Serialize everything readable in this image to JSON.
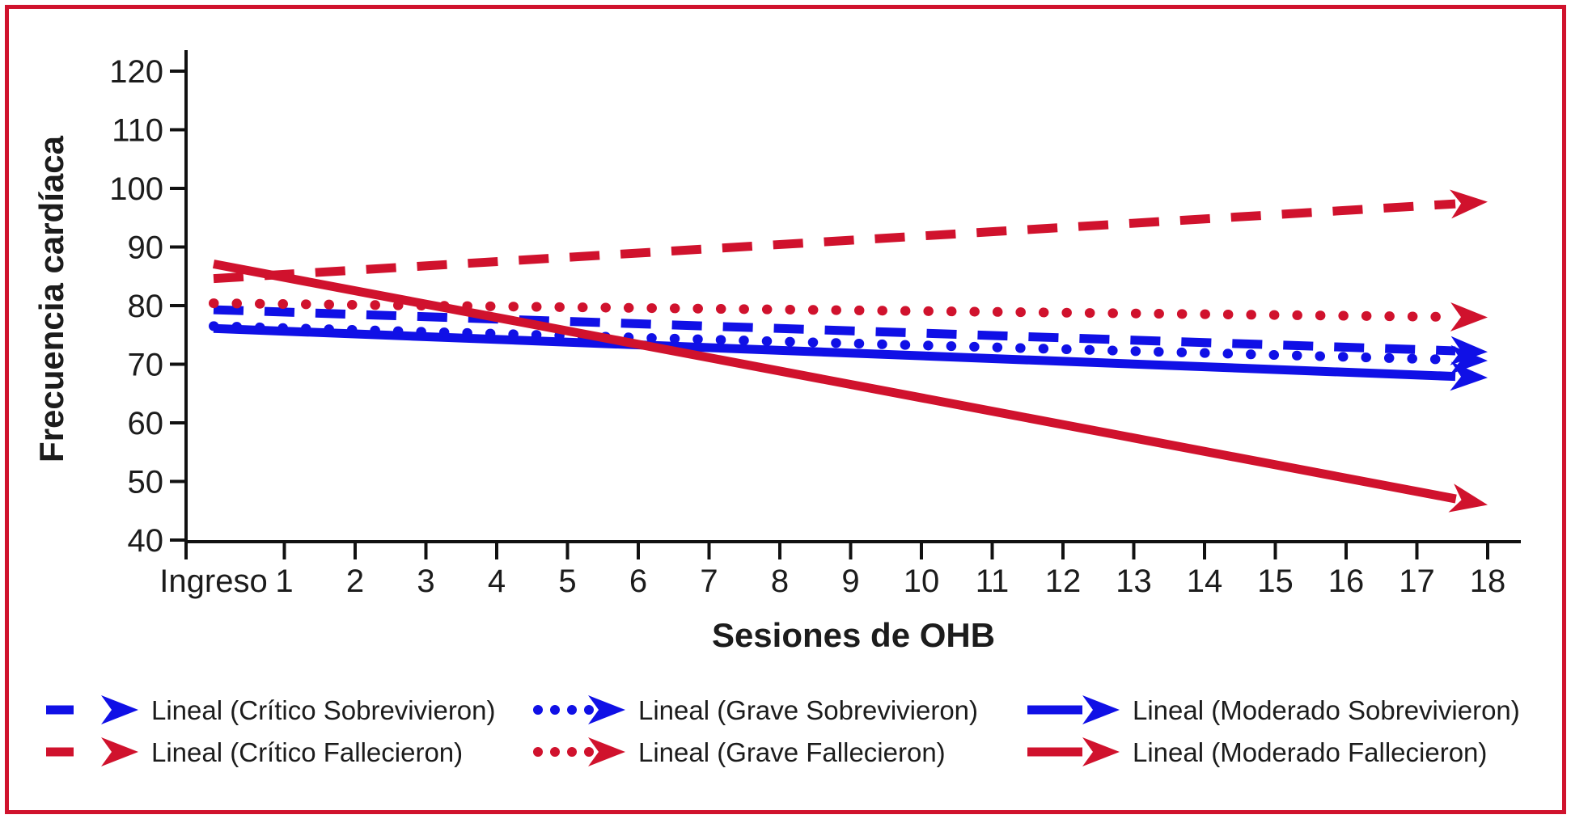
{
  "colors": {
    "blue": "#1010e6",
    "red": "#d0122d",
    "border": "#d0122d",
    "axis": "#111111",
    "text": "#1c1c1c"
  },
  "chart_data": {
    "type": "line",
    "title": "",
    "xlabel": "Sesiones de OHB",
    "ylabel": "Frecuencia cardíaca",
    "x_tick_labels": [
      "Ingreso",
      "1",
      "2",
      "3",
      "4",
      "5",
      "6",
      "7",
      "8",
      "9",
      "10",
      "11",
      "12",
      "13",
      "14",
      "15",
      "16",
      "17",
      "18"
    ],
    "y_ticks": [
      40,
      50,
      60,
      70,
      80,
      90,
      100,
      110,
      120
    ],
    "ylim": [
      40,
      120
    ],
    "x_range_note": "trend lines span from Ingreso (x=0) to session 18",
    "grid": false,
    "legend_position": "bottom",
    "series": [
      {
        "key": "critico-sobrevivieron",
        "name": "Lineal (Crítico Sobrevivieron)",
        "color": "#1010e6",
        "style": "dashed",
        "x": [
          0,
          18
        ],
        "values": [
          79.3,
          72.1
        ]
      },
      {
        "key": "grave-sobrevivieron",
        "name": "Lineal (Grave Sobrevivieron)",
        "color": "#1010e6",
        "style": "dotted",
        "x": [
          0,
          18
        ],
        "values": [
          76.5,
          70.6
        ]
      },
      {
        "key": "moderado-sobrevivieron",
        "name": "Lineal (Moderado Sobrevivieron)",
        "color": "#1010e6",
        "style": "solid",
        "x": [
          0,
          18
        ],
        "values": [
          76.1,
          67.7
        ]
      },
      {
        "key": "critico-fallecieron",
        "name": "Lineal (Crítico Fallecieron)",
        "color": "#d0122d",
        "style": "dashed",
        "x": [
          0,
          18
        ],
        "values": [
          84.6,
          97.7
        ]
      },
      {
        "key": "grave-fallecieron",
        "name": "Lineal (Grave Fallecieron)",
        "color": "#d0122d",
        "style": "dotted",
        "x": [
          0,
          18
        ],
        "values": [
          80.4,
          78.0
        ]
      },
      {
        "key": "moderado-fallecieron",
        "name": "Lineal (Moderado Fallecieron)",
        "color": "#d0122d",
        "style": "solid",
        "x": [
          0,
          18
        ],
        "values": [
          87.1,
          46.0
        ]
      }
    ]
  }
}
